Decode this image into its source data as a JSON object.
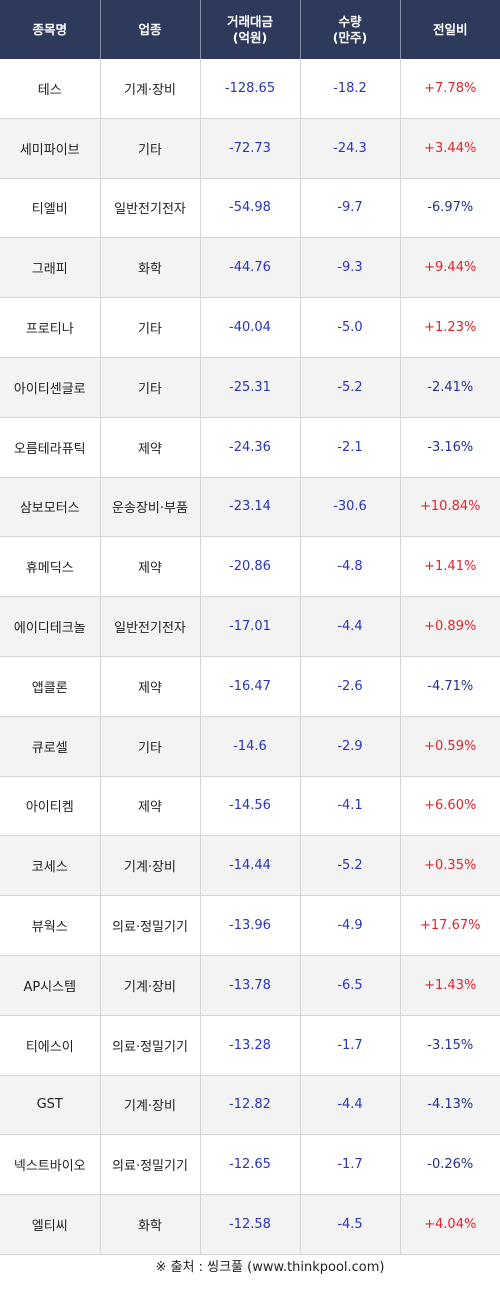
{
  "header": {
    "col_name": "종목명",
    "col_sector": "업종",
    "col_amount_line1": "거래대금",
    "col_amount_line2": "(억원)",
    "col_volume_line1": "수량",
    "col_volume_line2": "(만주)",
    "col_change": "전일비"
  },
  "colors": {
    "header_bg": "#2e3a5b",
    "negative_value": "#2a34b5",
    "positive_change": "#e0252d",
    "negative_change": "#27308f",
    "row_alt_bg": "#f3f3f3"
  },
  "rows": [
    {
      "name": "테스",
      "sector": "기계·장비",
      "amount": "-128.65",
      "volume": "-18.2",
      "change": "+7.78%"
    },
    {
      "name": "세미파이브",
      "sector": "기타",
      "amount": "-72.73",
      "volume": "-24.3",
      "change": "+3.44%"
    },
    {
      "name": "티엘비",
      "sector": "일반전기전자",
      "amount": "-54.98",
      "volume": "-9.7",
      "change": "-6.97%"
    },
    {
      "name": "그래피",
      "sector": "화학",
      "amount": "-44.76",
      "volume": "-9.3",
      "change": "+9.44%"
    },
    {
      "name": "프로티나",
      "sector": "기타",
      "amount": "-40.04",
      "volume": "-5.0",
      "change": "+1.23%"
    },
    {
      "name": "아이티센글로",
      "sector": "기타",
      "amount": "-25.31",
      "volume": "-5.2",
      "change": "-2.41%"
    },
    {
      "name": "오름테라퓨틱",
      "sector": "제약",
      "amount": "-24.36",
      "volume": "-2.1",
      "change": "-3.16%"
    },
    {
      "name": "삼보모터스",
      "sector": "운송장비·부품",
      "amount": "-23.14",
      "volume": "-30.6",
      "change": "+10.84%"
    },
    {
      "name": "휴메딕스",
      "sector": "제약",
      "amount": "-20.86",
      "volume": "-4.8",
      "change": "+1.41%"
    },
    {
      "name": "에이디테크놀",
      "sector": "일반전기전자",
      "amount": "-17.01",
      "volume": "-4.4",
      "change": "+0.89%"
    },
    {
      "name": "앱클론",
      "sector": "제약",
      "amount": "-16.47",
      "volume": "-2.6",
      "change": "-4.71%"
    },
    {
      "name": "큐로셀",
      "sector": "기타",
      "amount": "-14.6",
      "volume": "-2.9",
      "change": "+0.59%"
    },
    {
      "name": "아이티켐",
      "sector": "제약",
      "amount": "-14.56",
      "volume": "-4.1",
      "change": "+6.60%"
    },
    {
      "name": "코세스",
      "sector": "기계·장비",
      "amount": "-14.44",
      "volume": "-5.2",
      "change": "+0.35%"
    },
    {
      "name": "뷰웍스",
      "sector": "의료·정밀기기",
      "amount": "-13.96",
      "volume": "-4.9",
      "change": "+17.67%"
    },
    {
      "name": "AP시스템",
      "sector": "기계·장비",
      "amount": "-13.78",
      "volume": "-6.5",
      "change": "+1.43%"
    },
    {
      "name": "티에스이",
      "sector": "의료·정밀기기",
      "amount": "-13.28",
      "volume": "-1.7",
      "change": "-3.15%"
    },
    {
      "name": "GST",
      "sector": "기계·장비",
      "amount": "-12.82",
      "volume": "-4.4",
      "change": "-4.13%"
    },
    {
      "name": "넥스트바이오",
      "sector": "의료·정밀기기",
      "amount": "-12.65",
      "volume": "-1.7",
      "change": "-0.26%"
    },
    {
      "name": "엘티씨",
      "sector": "화학",
      "amount": "-12.58",
      "volume": "-4.5",
      "change": "+4.04%"
    }
  ],
  "footer": {
    "source": "※ 출처 : 씽크풀 (www.thinkpool.com)"
  }
}
